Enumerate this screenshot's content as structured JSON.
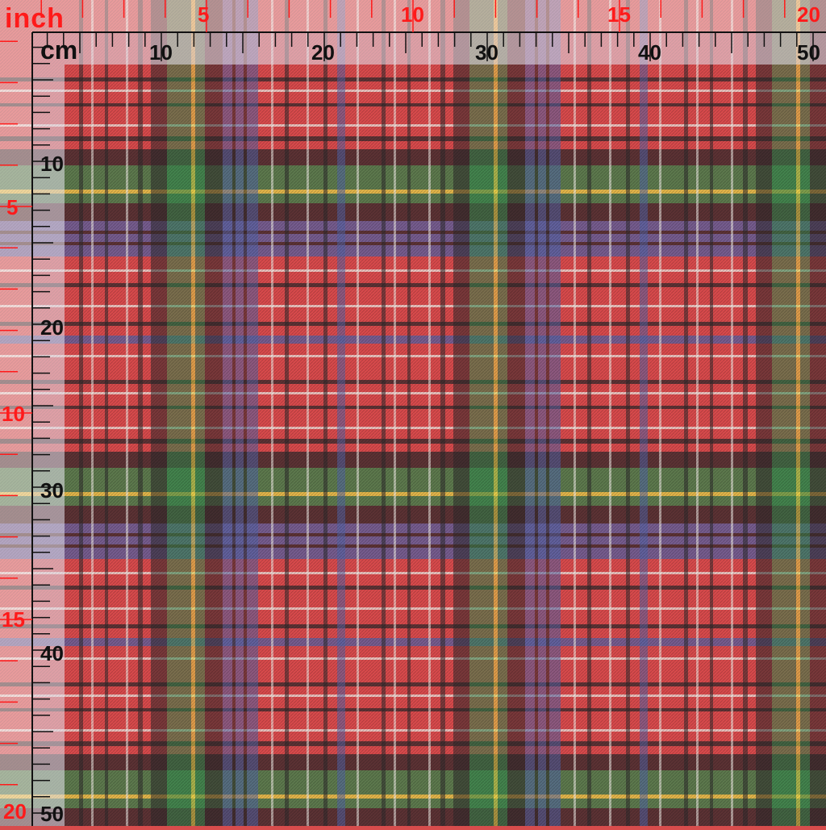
{
  "rulers": {
    "inch_unit": "inch",
    "cm_unit": "cm",
    "inch_top_labels": [
      "5",
      "10",
      "15",
      "20"
    ],
    "inch_left_labels": [
      "5",
      "10",
      "15",
      "20"
    ],
    "cm_top_labels": [
      "10",
      "20",
      "30",
      "40",
      "50"
    ],
    "cm_left_labels": [
      "10",
      "20",
      "30",
      "40",
      "50"
    ]
  },
  "colors": {
    "red": "#d84a4c",
    "green": "#2e8c4e",
    "black": "#2d2a2c",
    "blue": "#5164a8",
    "yellow": "#e6df4a",
    "white": "#f2eee8",
    "inch_ruler": "#ff1a1a",
    "cm_ruler": "#111111"
  }
}
